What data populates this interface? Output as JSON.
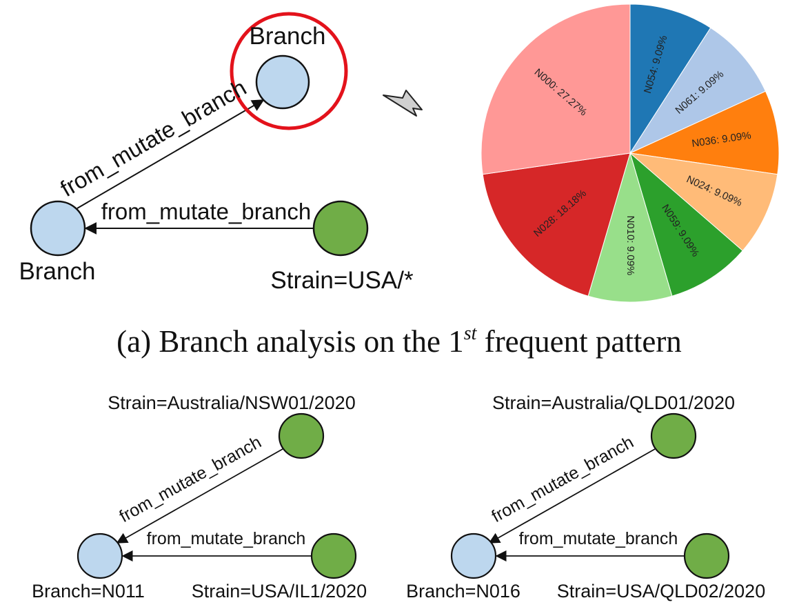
{
  "top_graph": {
    "node_top_label": "Branch",
    "node_left_label": "Branch",
    "node_right_label": "Strain=USA/*",
    "edge_diag_label": "from_mutate_branch",
    "edge_horiz_label": "from_mutate_branch"
  },
  "caption": {
    "prefix": "(a) Branch analysis on the 1",
    "superscript": "st",
    "suffix": " frequent pattern"
  },
  "bottom_left_graph": {
    "strain_top_label": "Strain=Australia/NSW01/2020",
    "branch_label": "Branch=N011",
    "strain_right_label": "Strain=USA/IL1/2020",
    "edge_diag_label": "from_mutate_branch",
    "edge_horiz_label": "from_mutate_branch"
  },
  "bottom_right_graph": {
    "strain_top_label": "Strain=Australia/QLD01/2020",
    "branch_label": "Branch=N016",
    "strain_right_label": "Strain=USA/QLD02/2020",
    "edge_diag_label": "from_mutate_branch",
    "edge_horiz_label": "from_mutate_branch"
  },
  "colors": {
    "branch_node": "#bdd7ee",
    "strain_node": "#70ad47",
    "highlight": "#e3121b",
    "arrow_fill": "#d0d0d0"
  },
  "chart_data": {
    "type": "pie",
    "slices": [
      {
        "label": "N054: 9.09%",
        "value": 9.09,
        "color": "#1f77b4"
      },
      {
        "label": "N061: 9.09%",
        "value": 9.09,
        "color": "#aec7e8"
      },
      {
        "label": "N036: 9.09%",
        "value": 9.09,
        "color": "#ff7f0e"
      },
      {
        "label": "N024: 9.09%",
        "value": 9.09,
        "color": "#ffbb78"
      },
      {
        "label": "N059: 9.09%",
        "value": 9.09,
        "color": "#2ca02c"
      },
      {
        "label": "N010: 9.09%",
        "value": 9.09,
        "color": "#98df8a"
      },
      {
        "label": "N028: 18.18%",
        "value": 18.18,
        "color": "#d62728"
      },
      {
        "label": "N000: 27.27%",
        "value": 27.27,
        "color": "#ff9896"
      }
    ]
  }
}
